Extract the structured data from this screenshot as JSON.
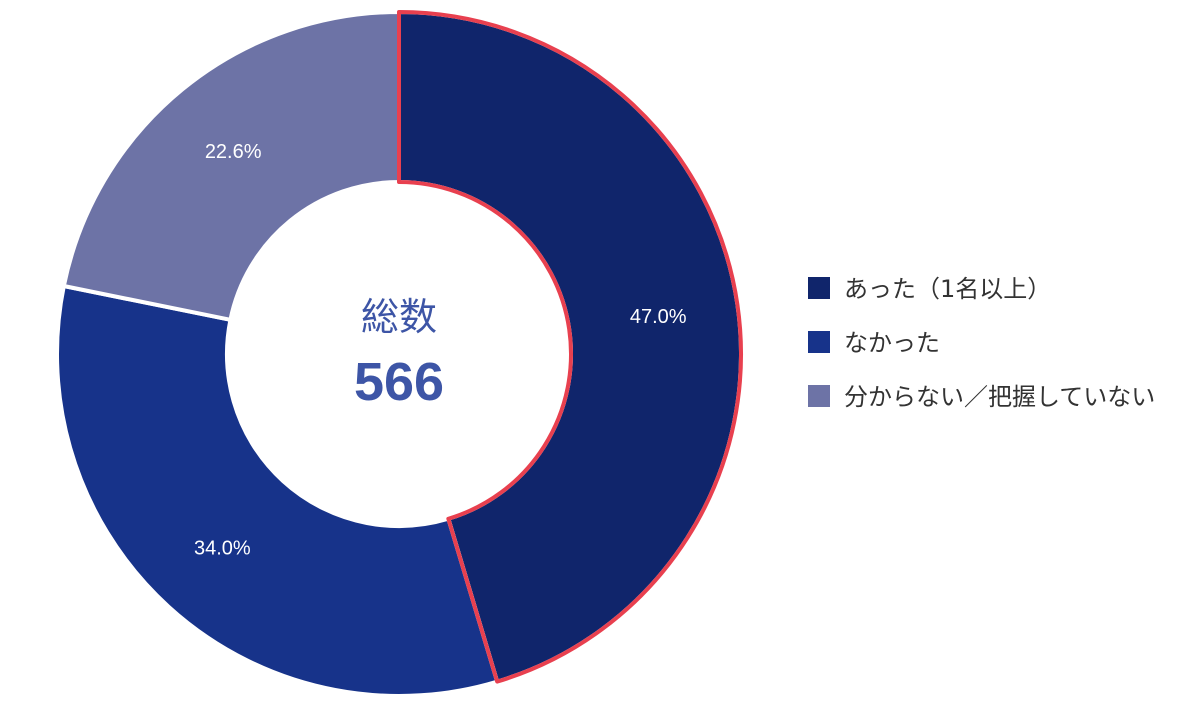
{
  "chart_data": {
    "type": "pie",
    "variant": "donut",
    "center": {
      "title": "総数",
      "total": "566"
    },
    "slices": [
      {
        "label": "あった（1名以上）",
        "value": 47.0,
        "display": "47.0%",
        "color": "#10256b",
        "highlighted": true
      },
      {
        "label": "なかった",
        "value": 34.0,
        "display": "34.0%",
        "color": "#17338a"
      },
      {
        "label": "分からない／把握していない",
        "value": 22.6,
        "display": "22.6%",
        "color": "#6d73a6"
      }
    ],
    "legend_position": "right",
    "highlight_color": "#e8404f"
  }
}
